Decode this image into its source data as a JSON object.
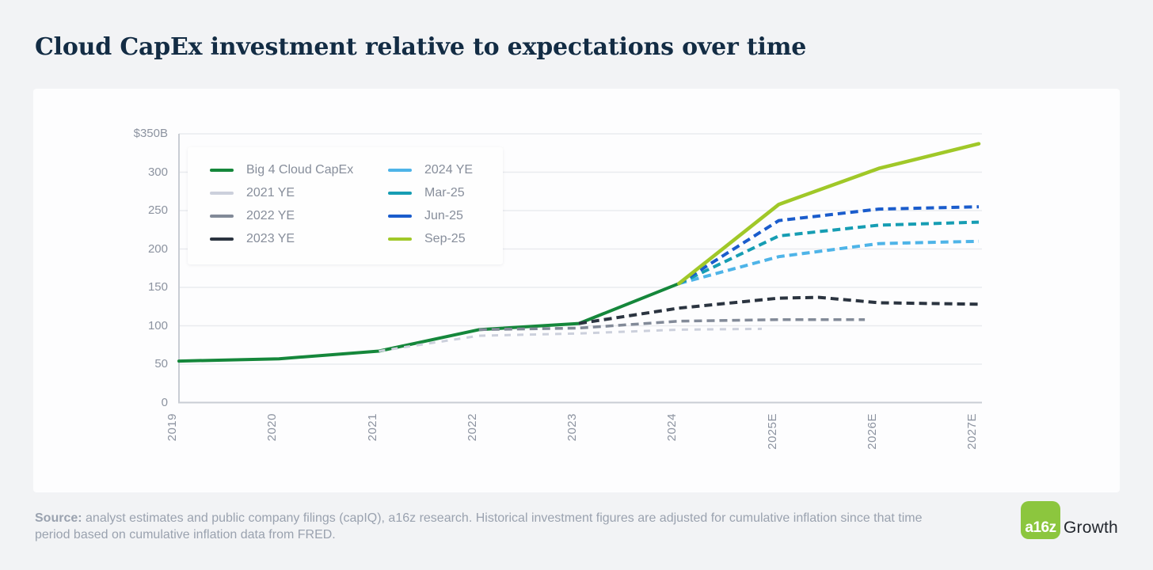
{
  "page": {
    "title": "Cloud CapEx investment relative to expectations over time"
  },
  "footer": {
    "source_label": "Source:",
    "source_text": " analyst estimates and public company filings (capIQ), a16z research. Historical investment figures are adjusted for cumulative inflation since that time period based on cumulative inflation data from FRED.",
    "logo_mark": "a16z",
    "logo_growth": "Growth",
    "logo_green": "#8cc63e"
  },
  "chart_data": {
    "type": "line",
    "title": "Cloud CapEx investment relative to expectations over time",
    "unit": "$B",
    "x_categories": [
      "2019",
      "2020",
      "2021",
      "2022",
      "2023",
      "2024",
      "2025E",
      "2026E",
      "2027E"
    ],
    "y_axis": {
      "range": [
        0,
        350
      ],
      "ticks": [
        {
          "value": 350,
          "label": "$350B"
        },
        {
          "value": 300,
          "label": "300"
        },
        {
          "value": 250,
          "label": "250"
        },
        {
          "value": 200,
          "label": "200"
        },
        {
          "value": 150,
          "label": "150"
        },
        {
          "value": 100,
          "label": "100"
        },
        {
          "value": 50,
          "label": "50"
        },
        {
          "value": 0,
          "label": "0"
        }
      ]
    },
    "grid": true,
    "legend_position": "inset top-left, two columns",
    "legend_columns": [
      [
        "Big 4 Cloud CapEx",
        "2021 YE",
        "2022 YE",
        "2023 YE"
      ],
      [
        "2024 YE",
        "Mar-25",
        "Jun-25",
        "Sep-25"
      ]
    ],
    "series": [
      {
        "name": "Big 4 Cloud CapEx",
        "color": "#15873b",
        "style": "solid",
        "width": 4,
        "points": [
          [
            0,
            54
          ],
          [
            1,
            57
          ],
          [
            2,
            67
          ],
          [
            3,
            95
          ],
          [
            4,
            103
          ],
          [
            5,
            155
          ]
        ]
      },
      {
        "name": "2021 YE",
        "color": "#ccd0dc",
        "style": "dashed",
        "width": 3,
        "points": [
          [
            2,
            67
          ],
          [
            3,
            87
          ],
          [
            4,
            90
          ],
          [
            5,
            95
          ],
          [
            5.83,
            96
          ]
        ]
      },
      {
        "name": "2022 YE",
        "color": "#828a98",
        "style": "dashed",
        "width": 3.5,
        "points": [
          [
            3,
            95
          ],
          [
            4,
            97
          ],
          [
            5,
            106
          ],
          [
            6,
            108
          ],
          [
            6.86,
            108
          ]
        ]
      },
      {
        "name": "2023 YE",
        "color": "#2b3440",
        "style": "dashed",
        "width": 4,
        "points": [
          [
            4,
            103
          ],
          [
            5,
            123
          ],
          [
            6,
            136
          ],
          [
            6.4,
            137
          ],
          [
            7,
            130
          ],
          [
            8,
            128
          ]
        ]
      },
      {
        "name": "2024 YE",
        "color": "#4eb4e8",
        "style": "dashed",
        "width": 4,
        "points": [
          [
            5,
            155
          ],
          [
            6,
            190
          ],
          [
            7,
            207
          ],
          [
            8,
            210
          ]
        ]
      },
      {
        "name": "Mar-25",
        "color": "#169db3",
        "style": "dashed",
        "width": 4,
        "points": [
          [
            5,
            155
          ],
          [
            6,
            217
          ],
          [
            7,
            231
          ],
          [
            8,
            235
          ]
        ]
      },
      {
        "name": "Jun-25",
        "color": "#1a5ccc",
        "style": "dashed",
        "width": 4,
        "points": [
          [
            5,
            155
          ],
          [
            6,
            237
          ],
          [
            7,
            252
          ],
          [
            8,
            255
          ]
        ]
      },
      {
        "name": "Sep-25",
        "color": "#a0c828",
        "style": "solid",
        "width": 4.5,
        "points": [
          [
            5,
            155
          ],
          [
            6,
            258
          ],
          [
            7,
            305
          ],
          [
            8,
            337
          ]
        ]
      }
    ]
  }
}
